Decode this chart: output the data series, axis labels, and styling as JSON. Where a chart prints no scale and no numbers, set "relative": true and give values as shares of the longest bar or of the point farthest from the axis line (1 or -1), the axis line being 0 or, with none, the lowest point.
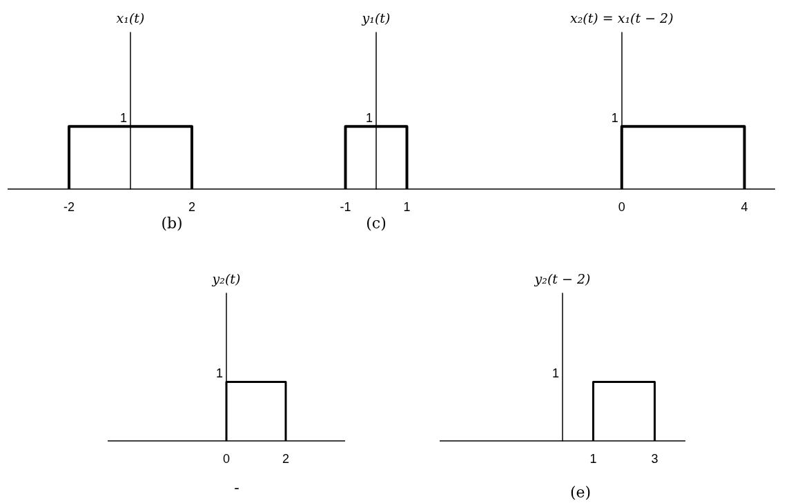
{
  "chart_data": [
    {
      "type": "line",
      "ylabel": "x₁(t)",
      "x": [
        -2,
        -2,
        2,
        2
      ],
      "values": [
        0,
        1,
        1,
        0
      ],
      "color": "#000000",
      "relative": true,
      "xlim": [
        -4,
        4
      ],
      "xticks": [
        -2,
        2
      ],
      "annotations": [
        "1",
        "(b)"
      ]
    },
    {
      "type": "line",
      "ylabel": "y₁(t)",
      "x": [
        -1,
        -1,
        1,
        1
      ],
      "values": [
        0,
        1,
        1,
        0
      ],
      "color": "#000000",
      "relative": true,
      "xlim": [
        -4,
        4
      ],
      "xticks": [
        -1,
        1
      ],
      "annotations": [
        "1",
        "(c)"
      ]
    },
    {
      "type": "line",
      "ylabel": "x₂(t) = x₁(t − 2)",
      "x": [
        0,
        0,
        4,
        4
      ],
      "values": [
        0,
        1,
        1,
        0
      ],
      "color": "#000000",
      "relative": true,
      "xlim": [
        -4,
        5
      ],
      "xticks": [
        0,
        4
      ],
      "annotations": [
        "1"
      ]
    },
    {
      "type": "line",
      "ylabel": "y₂(t)",
      "x": [
        0,
        0,
        2,
        2
      ],
      "values": [
        0,
        1,
        1,
        0
      ],
      "color": "#000000",
      "relative": true,
      "xlim": [
        -4,
        4
      ],
      "xticks": [
        0,
        2
      ],
      "annotations": [
        "1",
        "-"
      ]
    },
    {
      "type": "line",
      "ylabel": "y₂(t − 2)",
      "x": [
        1,
        1,
        3,
        3
      ],
      "values": [
        0,
        1,
        1,
        0
      ],
      "color": "#000000",
      "relative": true,
      "xlim": [
        -4,
        4
      ],
      "xticks": [
        1,
        3
      ],
      "annotations": [
        "1",
        "(e)"
      ]
    }
  ]
}
